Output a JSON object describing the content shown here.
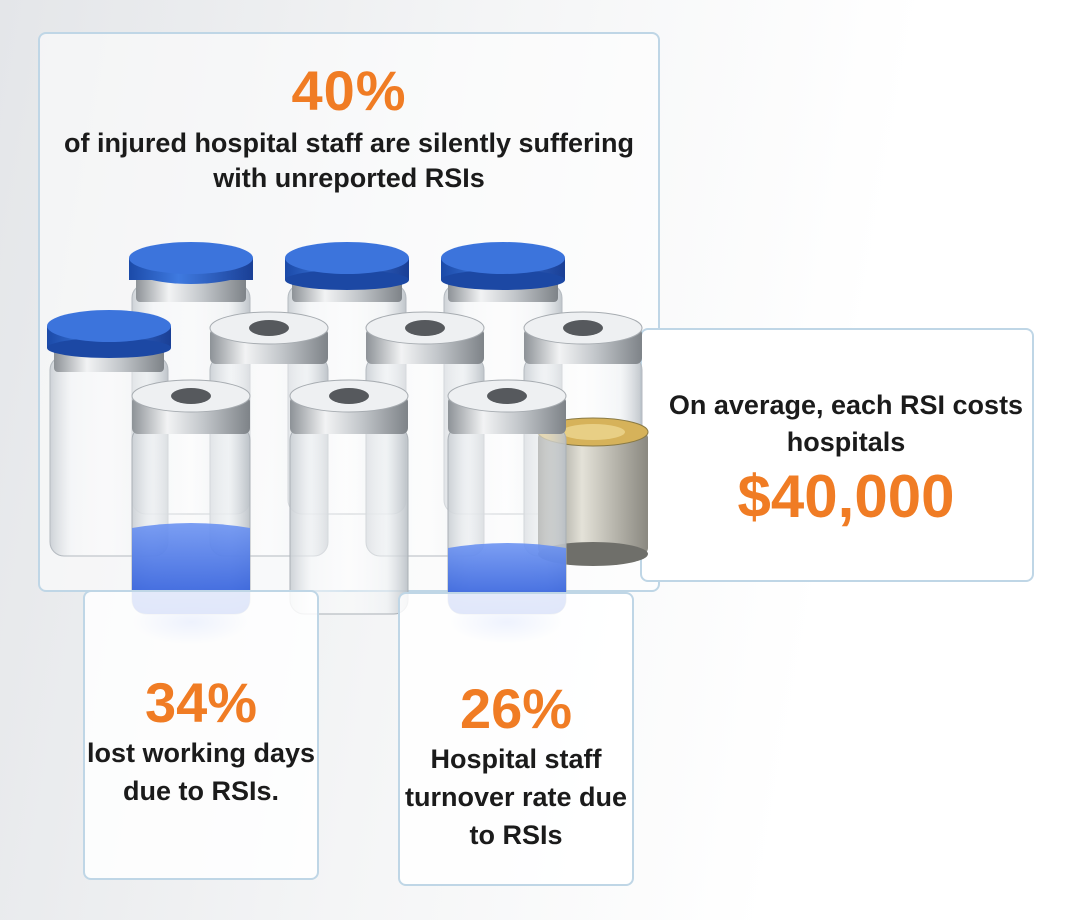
{
  "top_stat": {
    "value": "40%",
    "desc": "of injured hospital staff are silently suffering with unreported RSIs"
  },
  "right_stat": {
    "desc": "On average, each RSI costs hospitals",
    "value": "$40,000"
  },
  "bottom_left_stat": {
    "value": "34%",
    "desc": "lost working days due to RSIs."
  },
  "bottom_mid_stat": {
    "value": "26%",
    "desc": "Hospital staff turnover rate due to RSIs"
  },
  "colors": {
    "accent": "#f07c24",
    "text": "#1b1b1b",
    "border": "#bfd6e6",
    "cap_blue": "#2f63c7",
    "liquid_blue": "#2a5fe0"
  },
  "illustration": {
    "icons": [
      "vial-icon",
      "coin-stack-icon"
    ]
  }
}
